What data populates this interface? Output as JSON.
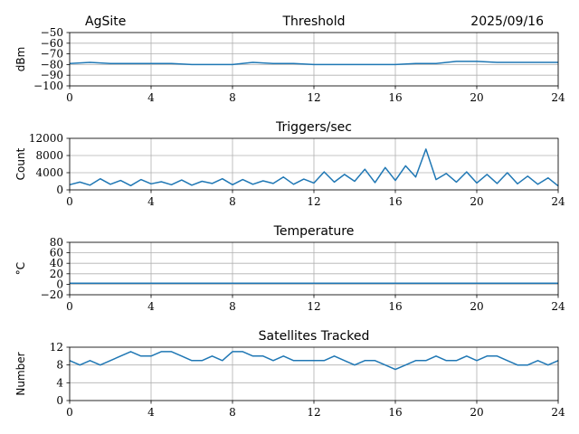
{
  "header": {
    "site": "AgSite",
    "date": "2025/09/16"
  },
  "series_color": "#1f77b4",
  "chart_data": [
    {
      "type": "line",
      "title": "Threshold",
      "ylabel": "dBm",
      "xlim": [
        0,
        24
      ],
      "ylim": [
        -100,
        -50
      ],
      "xticks": [
        0,
        4,
        8,
        12,
        16,
        20,
        24
      ],
      "xtick_labels": [
        "0",
        "4",
        "8",
        "12",
        "16",
        "20",
        "24"
      ],
      "yticks": [
        -100,
        -90,
        -80,
        -70,
        -60,
        -50
      ],
      "ytick_labels": [
        "−100",
        "−90",
        "−80",
        "−70",
        "−60",
        "−50"
      ],
      "grid": true,
      "series": [
        {
          "x": [
            0,
            1,
            2,
            3,
            4,
            5,
            6,
            7,
            8,
            9,
            10,
            11,
            12,
            13,
            14,
            15,
            16,
            17,
            18,
            19,
            20,
            21,
            22,
            23,
            24
          ],
          "values": [
            -79,
            -78,
            -79,
            -79,
            -79,
            -79,
            -80,
            -80,
            -80,
            -78,
            -79,
            -79,
            -80,
            -80,
            -80,
            -80,
            -80,
            -79,
            -79,
            -77,
            -77,
            -78,
            -78,
            -78,
            -78
          ]
        }
      ]
    },
    {
      "type": "line",
      "title": "Triggers/sec",
      "ylabel": "Count",
      "xlim": [
        0,
        24
      ],
      "ylim": [
        0,
        12000
      ],
      "xticks": [
        0,
        4,
        8,
        12,
        16,
        20,
        24
      ],
      "xtick_labels": [
        "0",
        "4",
        "8",
        "12",
        "16",
        "20",
        "24"
      ],
      "yticks": [
        0,
        4000,
        8000,
        12000
      ],
      "ytick_labels": [
        "0",
        "4000",
        "8000",
        "12000"
      ],
      "grid": true,
      "series": [
        {
          "x": [
            0,
            0.5,
            1,
            1.5,
            2,
            2.5,
            3,
            3.5,
            4,
            4.5,
            5,
            5.5,
            6,
            6.5,
            7,
            7.5,
            8,
            8.5,
            9,
            9.5,
            10,
            10.5,
            11,
            11.5,
            12,
            12.5,
            13,
            13.5,
            14,
            14.5,
            15,
            15.5,
            16,
            16.5,
            17,
            17.5,
            18,
            18.5,
            19,
            19.5,
            20,
            20.5,
            21,
            21.5,
            22,
            22.5,
            23,
            23.5,
            24
          ],
          "values": [
            1200,
            1800,
            1100,
            2600,
            1300,
            2200,
            1000,
            2400,
            1400,
            1900,
            1200,
            2300,
            1100,
            2000,
            1500,
            2600,
            1200,
            2400,
            1300,
            2100,
            1500,
            3000,
            1300,
            2500,
            1600,
            4200,
            1800,
            3600,
            2000,
            4800,
            1700,
            5200,
            2200,
            5600,
            3000,
            9500,
            2400,
            3800,
            1800,
            4200,
            1600,
            3600,
            1500,
            4000,
            1400,
            3200,
            1300,
            2800,
            900
          ]
        }
      ]
    },
    {
      "type": "line",
      "title": "Temperature",
      "ylabel": "°C",
      "xlim": [
        0,
        24
      ],
      "ylim": [
        -20,
        80
      ],
      "xticks": [
        0,
        4,
        8,
        12,
        16,
        20,
        24
      ],
      "xtick_labels": [
        "0",
        "4",
        "8",
        "12",
        "16",
        "20",
        "24"
      ],
      "yticks": [
        -20,
        0,
        20,
        40,
        60,
        80
      ],
      "ytick_labels": [
        "−20",
        "0",
        "20",
        "40",
        "60",
        "80"
      ],
      "grid": true,
      "series": [
        {
          "x": [
            0,
            24
          ],
          "values": [
            2,
            2
          ]
        }
      ]
    },
    {
      "type": "line",
      "title": "Satellites Tracked",
      "ylabel": "Number",
      "xlim": [
        0,
        24
      ],
      "ylim": [
        0,
        12
      ],
      "xticks": [
        0,
        4,
        8,
        12,
        16,
        20,
        24
      ],
      "xtick_labels": [
        "0",
        "4",
        "8",
        "12",
        "16",
        "20",
        "24"
      ],
      "yticks": [
        0,
        4,
        8,
        12
      ],
      "ytick_labels": [
        "0",
        "4",
        "8",
        "12"
      ],
      "grid": true,
      "series": [
        {
          "x": [
            0,
            0.5,
            1,
            1.5,
            2,
            2.5,
            3,
            3.5,
            4,
            4.5,
            5,
            5.5,
            6,
            6.5,
            7,
            7.5,
            8,
            8.5,
            9,
            9.5,
            10,
            10.5,
            11,
            11.5,
            12,
            12.5,
            13,
            13.5,
            14,
            14.5,
            15,
            15.5,
            16,
            16.5,
            17,
            17.5,
            18,
            18.5,
            19,
            19.5,
            20,
            20.5,
            21,
            21.5,
            22,
            22.5,
            23,
            23.5,
            24
          ],
          "values": [
            9,
            8,
            9,
            8,
            9,
            10,
            11,
            10,
            10,
            11,
            11,
            10,
            9,
            9,
            10,
            9,
            11,
            11,
            10,
            10,
            9,
            10,
            9,
            9,
            9,
            9,
            10,
            9,
            8,
            9,
            9,
            8,
            7,
            8,
            9,
            9,
            10,
            9,
            9,
            10,
            9,
            10,
            10,
            9,
            8,
            8,
            9,
            8,
            9
          ]
        }
      ]
    }
  ]
}
